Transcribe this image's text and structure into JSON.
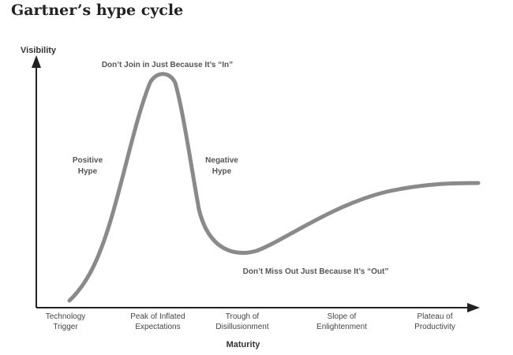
{
  "page_title": "Gartner’s hype cycle",
  "axes": {
    "y_label": "Visibility",
    "x_label": "Maturity"
  },
  "annotations": {
    "peak_note": "Don’t Join in Just Because It’s “In”",
    "trough_note": "Don’t Miss Out Just Because It’s “Out”",
    "positive_line1": "Positive",
    "positive_line2": "Hype",
    "negative_line1": "Negative",
    "negative_line2": "Hype"
  },
  "phases": [
    {
      "line1": "Technology",
      "line2": "Trigger"
    },
    {
      "line1": "Peak of Inflated",
      "line2": "Expectations"
    },
    {
      "line1": "Trough of",
      "line2": "Disillusionment"
    },
    {
      "line1": "Slope of",
      "line2": "Enlightenment"
    },
    {
      "line1": "Plateau of",
      "line2": "Productivity"
    }
  ],
  "colors": {
    "curve": "#8a8a8a",
    "axis": "#222222",
    "text": "#444444"
  }
}
